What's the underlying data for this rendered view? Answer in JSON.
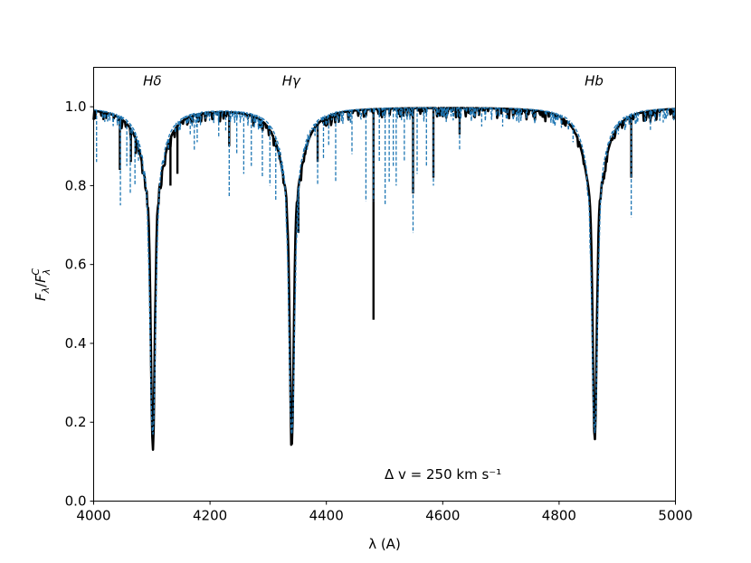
{
  "chart_data": {
    "type": "line",
    "xlabel": "λ (A)",
    "ylabel": "F_λ/F_λ^C",
    "xlim": [
      4000,
      5000
    ],
    "ylim": [
      0.0,
      1.1
    ],
    "x_ticks": [
      4000,
      4200,
      4400,
      4600,
      4800,
      5000
    ],
    "y_ticks": [
      0.0,
      0.2,
      0.4,
      0.6,
      0.8,
      1.0
    ],
    "grid": false,
    "annotation": "Δ v = 250 km s⁻¹",
    "line_labels": [
      {
        "text": "Hδ",
        "x": 4102
      },
      {
        "text": "Hγ",
        "x": 4341
      },
      {
        "text": "Hb",
        "x": 4861
      }
    ],
    "series": [
      {
        "style": "solid",
        "color": "#000000",
        "balmer_lines": [
          {
            "center": 4101.7,
            "depth": 0.145
          },
          {
            "center": 4340.5,
            "depth": 0.145
          },
          {
            "center": 4861.3,
            "depth": 0.155
          }
        ],
        "metal_lines": [
          {
            "x": 4045,
            "y": 0.84
          },
          {
            "x": 4064,
            "y": 0.86
          },
          {
            "x": 4072,
            "y": 0.88
          },
          {
            "x": 4132,
            "y": 0.8
          },
          {
            "x": 4144,
            "y": 0.83
          },
          {
            "x": 4233,
            "y": 0.9
          },
          {
            "x": 4352,
            "y": 0.68
          },
          {
            "x": 4385,
            "y": 0.86
          },
          {
            "x": 4481,
            "y": 0.46
          },
          {
            "x": 4549,
            "y": 0.78
          },
          {
            "x": 4584,
            "y": 0.82
          },
          {
            "x": 4629,
            "y": 0.93
          },
          {
            "x": 4924,
            "y": 0.82
          },
          {
            "x": 4957,
            "y": 0.96
          }
        ]
      },
      {
        "style": "dashed",
        "color": "#1f77b4",
        "balmer_lines": [
          {
            "center": 4101.7,
            "depth": 0.17
          },
          {
            "center": 4340.5,
            "depth": 0.17
          },
          {
            "center": 4861.3,
            "depth": 0.18
          }
        ],
        "metal_lines": [
          {
            "x": 4005,
            "y": 0.86
          },
          {
            "x": 4046,
            "y": 0.75
          },
          {
            "x": 4057,
            "y": 0.85
          },
          {
            "x": 4063,
            "y": 0.78
          },
          {
            "x": 4071,
            "y": 0.8
          },
          {
            "x": 4077,
            "y": 0.86
          },
          {
            "x": 4166,
            "y": 0.93
          },
          {
            "x": 4173,
            "y": 0.89
          },
          {
            "x": 4178,
            "y": 0.91
          },
          {
            "x": 4215,
            "y": 0.92
          },
          {
            "x": 4227,
            "y": 0.94
          },
          {
            "x": 4233,
            "y": 0.77
          },
          {
            "x": 4246,
            "y": 0.88
          },
          {
            "x": 4258,
            "y": 0.83
          },
          {
            "x": 4271,
            "y": 0.85
          },
          {
            "x": 4290,
            "y": 0.82
          },
          {
            "x": 4303,
            "y": 0.8
          },
          {
            "x": 4313,
            "y": 0.76
          },
          {
            "x": 4325,
            "y": 0.82
          },
          {
            "x": 4352,
            "y": 0.68
          },
          {
            "x": 4368,
            "y": 0.93
          },
          {
            "x": 4385,
            "y": 0.8
          },
          {
            "x": 4395,
            "y": 0.87
          },
          {
            "x": 4404,
            "y": 0.9
          },
          {
            "x": 4416,
            "y": 0.81
          },
          {
            "x": 4444,
            "y": 0.88
          },
          {
            "x": 4468,
            "y": 0.76
          },
          {
            "x": 4481,
            "y": 0.76
          },
          {
            "x": 4491,
            "y": 0.86
          },
          {
            "x": 4501,
            "y": 0.75
          },
          {
            "x": 4508,
            "y": 0.81
          },
          {
            "x": 4515,
            "y": 0.85
          },
          {
            "x": 4520,
            "y": 0.8
          },
          {
            "x": 4534,
            "y": 0.86
          },
          {
            "x": 4549,
            "y": 0.68
          },
          {
            "x": 4556,
            "y": 0.83
          },
          {
            "x": 4572,
            "y": 0.85
          },
          {
            "x": 4584,
            "y": 0.8
          },
          {
            "x": 4629,
            "y": 0.89
          },
          {
            "x": 4667,
            "y": 0.95
          },
          {
            "x": 4703,
            "y": 0.95
          },
          {
            "x": 4731,
            "y": 0.96
          },
          {
            "x": 4824,
            "y": 0.91
          },
          {
            "x": 4902,
            "y": 0.93
          },
          {
            "x": 4924,
            "y": 0.72
          },
          {
            "x": 4957,
            "y": 0.94
          },
          {
            "x": 4979,
            "y": 0.96
          }
        ]
      }
    ]
  }
}
